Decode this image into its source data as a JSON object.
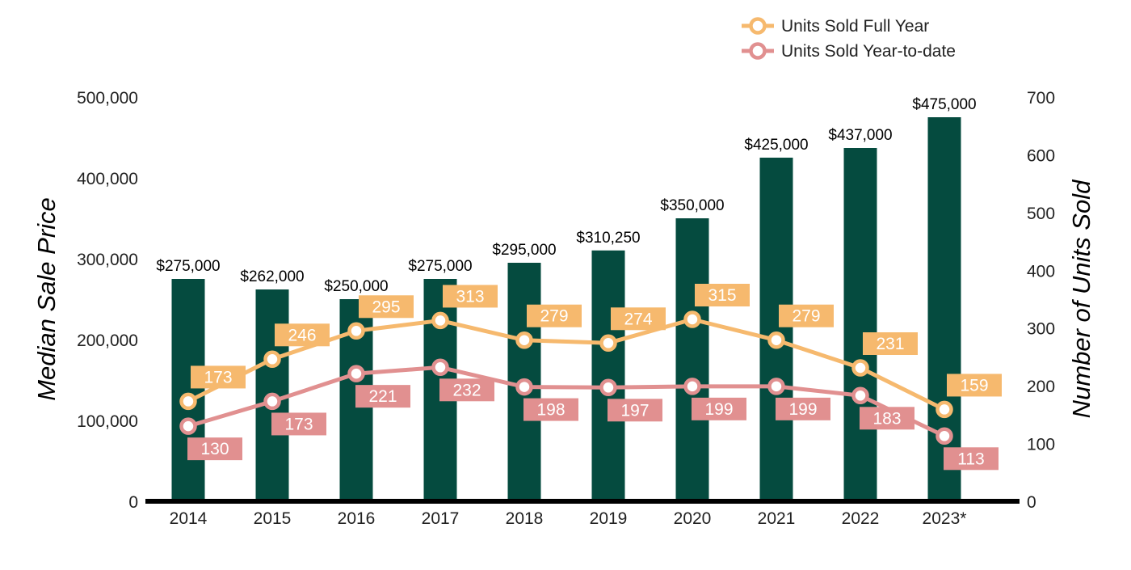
{
  "colors": {
    "bar": "#054b3f",
    "full_year": "#f6b96e",
    "ytd": "#e19090",
    "axis": "#000000",
    "text": "#222222",
    "point_fill": "#ffffff",
    "label_text": "#ffffff"
  },
  "chart_data": {
    "type": "bar",
    "categories": [
      "2014",
      "2015",
      "2016",
      "2017",
      "2018",
      "2019",
      "2020",
      "2021",
      "2022",
      "2023*"
    ],
    "ylabel": "Median Sale Price",
    "y2label": "Number of Units Sold",
    "ylim": [
      0,
      500000
    ],
    "y2lim": [
      0,
      700
    ],
    "y_ticks": [
      0,
      100000,
      200000,
      300000,
      400000,
      500000
    ],
    "y_tick_labels": [
      "0",
      "100,000",
      "200,000",
      "300,000",
      "400,000",
      "500,000"
    ],
    "y2_ticks": [
      0,
      100,
      200,
      300,
      400,
      500,
      600,
      700
    ],
    "y2_tick_labels": [
      "0",
      "100",
      "200",
      "300",
      "400",
      "500",
      "600",
      "700"
    ],
    "legend_position": "top-right",
    "grid": false,
    "bars": {
      "values": [
        275000,
        262000,
        250000,
        275000,
        295000,
        310250,
        350000,
        425000,
        437000,
        475000
      ],
      "labels": [
        "$275,000",
        "$262,000",
        "$250,000",
        "$275,000",
        "$295,000",
        "$310,250",
        "$350,000",
        "$425,000",
        "$437,000",
        "$475,000"
      ]
    },
    "series": [
      {
        "name": "Units Sold Full Year",
        "axis": "right",
        "values": [
          173,
          246,
          295,
          313,
          279,
          274,
          315,
          279,
          231,
          159
        ],
        "labels": [
          "173",
          "246",
          "295",
          "313",
          "279",
          "274",
          "315",
          "279",
          "231",
          "159"
        ]
      },
      {
        "name": "Units Sold Year-to-date",
        "axis": "right",
        "values": [
          130,
          173,
          221,
          232,
          198,
          197,
          199,
          199,
          183,
          113
        ],
        "labels": [
          "130",
          "173",
          "221",
          "232",
          "198",
          "197",
          "199",
          "199",
          "183",
          "113"
        ]
      }
    ]
  }
}
